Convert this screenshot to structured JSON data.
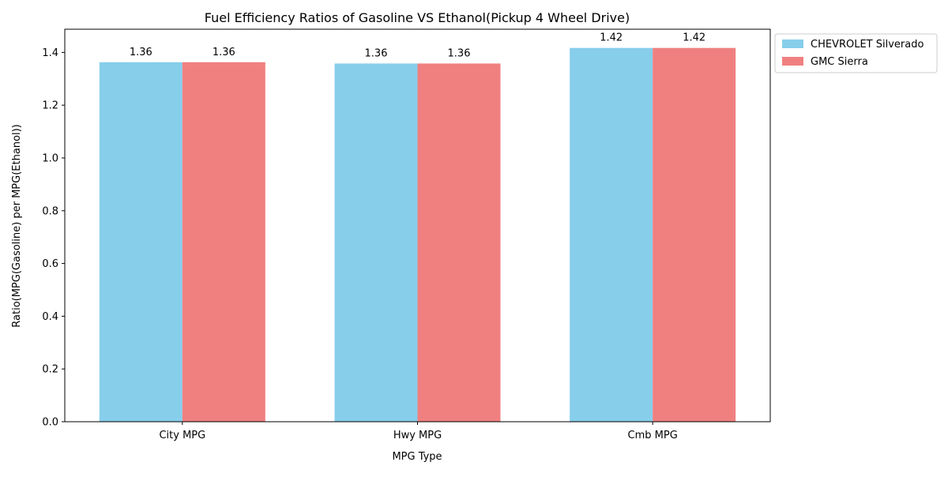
{
  "chart_data": {
    "type": "bar",
    "title": "Fuel Efficiency Ratios of Gasoline VS Ethanol(Pickup 4 Wheel Drive)",
    "xlabel": "MPG Type",
    "ylabel": "Ratio(MPG(Gasoline) per MPG(Ethanol))",
    "categories": [
      "City MPG",
      "Hwy MPG",
      "Cmb MPG"
    ],
    "series": [
      {
        "name": "CHEVROLET Silverado",
        "color": "#87ceeb",
        "values": [
          1.363,
          1.358,
          1.417
        ],
        "labels": [
          "1.36",
          "1.36",
          "1.42"
        ]
      },
      {
        "name": "GMC Sierra",
        "color": "#f08080",
        "values": [
          1.363,
          1.358,
          1.417
        ],
        "labels": [
          "1.36",
          "1.36",
          "1.42"
        ]
      }
    ],
    "ylim": [
      0,
      1.488
    ],
    "yticks": [
      0.0,
      0.2,
      0.4,
      0.6,
      0.8,
      1.0,
      1.2,
      1.4
    ],
    "ytick_labels": [
      "0.0",
      "0.2",
      "0.4",
      "0.6",
      "0.8",
      "1.0",
      "1.2",
      "1.4"
    ],
    "grid": false,
    "legend_position": "outside-top-right"
  }
}
